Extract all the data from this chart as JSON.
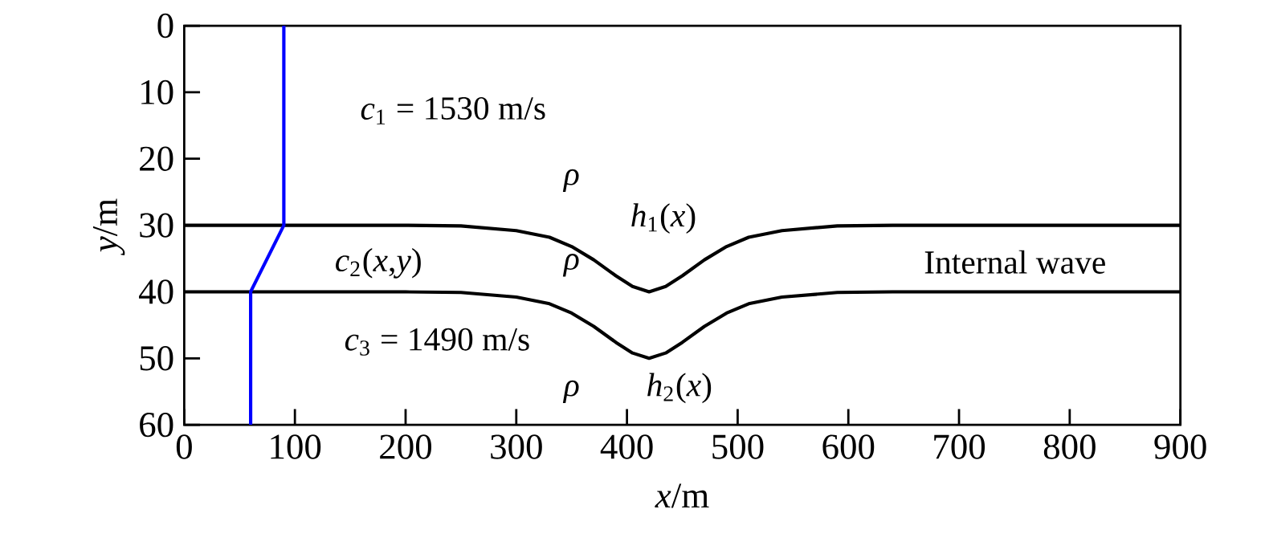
{
  "chart_data": {
    "type": "line",
    "xlabel": "*x*/m",
    "ylabel": "*y*/m",
    "xlim": [
      0,
      900
    ],
    "ylim": [
      60,
      0
    ],
    "xticks": [
      0,
      100,
      200,
      300,
      400,
      500,
      600,
      700,
      800,
      900
    ],
    "yticks": [
      0,
      10,
      20,
      30,
      40,
      50,
      60
    ],
    "grid": false,
    "marker": "none",
    "line_style": "solid",
    "series": [
      {
        "color": "#000000",
        "x": [
          0,
          200,
          250,
          300,
          330,
          350,
          370,
          390,
          405,
          420,
          435,
          450,
          470,
          490,
          510,
          540,
          590,
          640,
          900
        ],
        "values": [
          30,
          30,
          30.1,
          30.8,
          31.8,
          33.2,
          35.2,
          37.6,
          39.2,
          40,
          39.2,
          37.6,
          35.2,
          33.2,
          31.8,
          30.8,
          30.1,
          30,
          30
        ]
      },
      {
        "color": "#000000",
        "x": [
          0,
          200,
          250,
          300,
          330,
          350,
          370,
          390,
          405,
          420,
          435,
          450,
          470,
          490,
          510,
          540,
          590,
          640,
          900
        ],
        "values": [
          40,
          40,
          40.1,
          40.8,
          41.8,
          43.2,
          45.2,
          47.6,
          49.2,
          50,
          49.2,
          47.6,
          45.2,
          43.2,
          41.8,
          40.8,
          40.1,
          40,
          40
        ]
      },
      {
        "color": "#0000ff",
        "x": [
          90,
          90,
          60,
          60
        ],
        "values": [
          0,
          30,
          40,
          60
        ]
      }
    ],
    "annotations": [
      "*c*$_{1}$ = 1530 m/s",
      "*ρ*",
      "*h*$_{1}$(*x*)",
      "*c*$_{2}$(*x*,*y*)",
      "*ρ*",
      "Internal wave",
      "*c*$_{3}$ = 1490 m/s",
      "*ρ*",
      "*h*$_{2}$(*x*)"
    ]
  }
}
